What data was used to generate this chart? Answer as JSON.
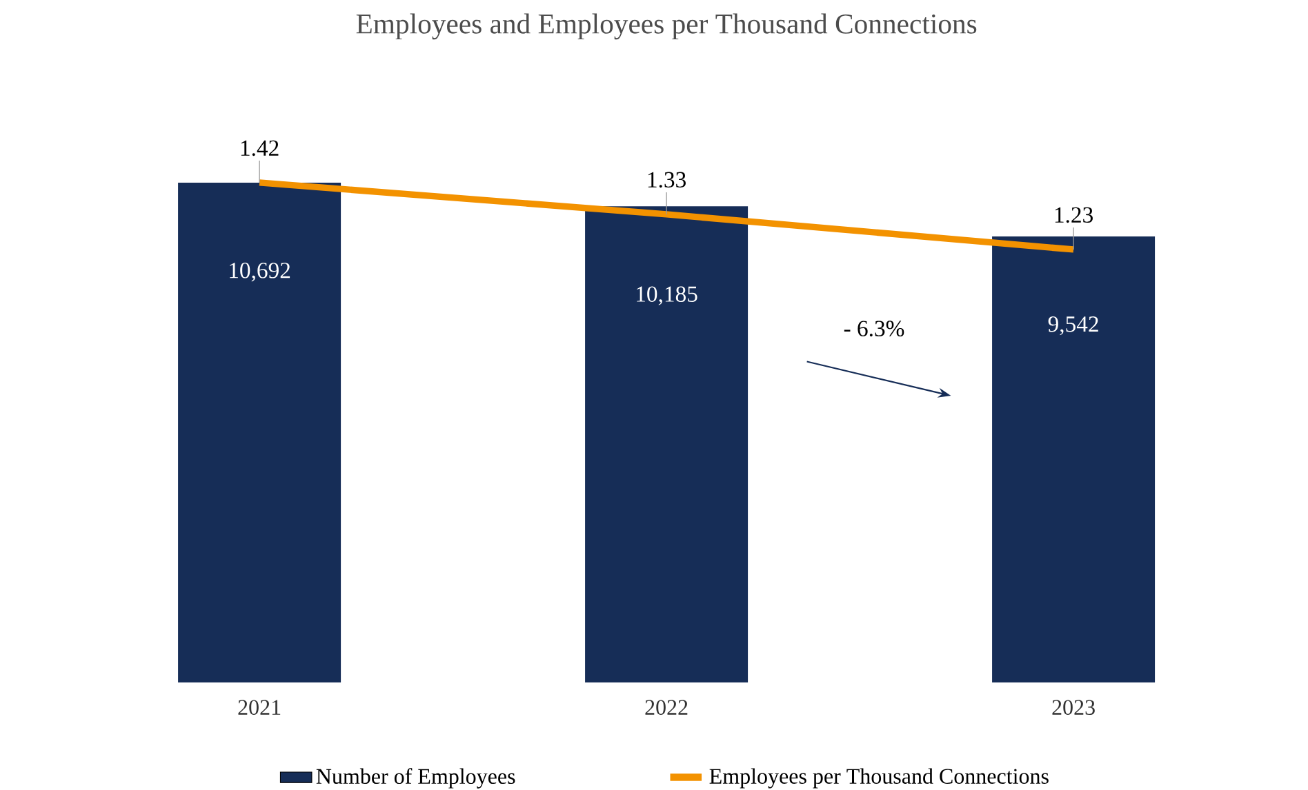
{
  "chart_data": {
    "type": "bar",
    "title": "Employees and Employees per Thousand Connections",
    "categories": [
      "2021",
      "2022",
      "2023"
    ],
    "series": [
      {
        "name": "Number of Employees",
        "color": "#162d57",
        "values": [
          10692,
          10185,
          9542
        ],
        "value_labels": [
          "10,692",
          "10,185",
          "9,542"
        ]
      },
      {
        "name": "Employees per Thousand Connections",
        "type": "line",
        "axis": "y2",
        "color": "#f39200",
        "values": [
          1.42,
          1.33,
          1.23
        ],
        "value_labels": [
          "1.42",
          "1.33",
          "1.23"
        ]
      }
    ],
    "annotations": [
      "- 6.3%"
    ],
    "legend": "bottom",
    "marker": "none",
    "line_style": "solid"
  }
}
